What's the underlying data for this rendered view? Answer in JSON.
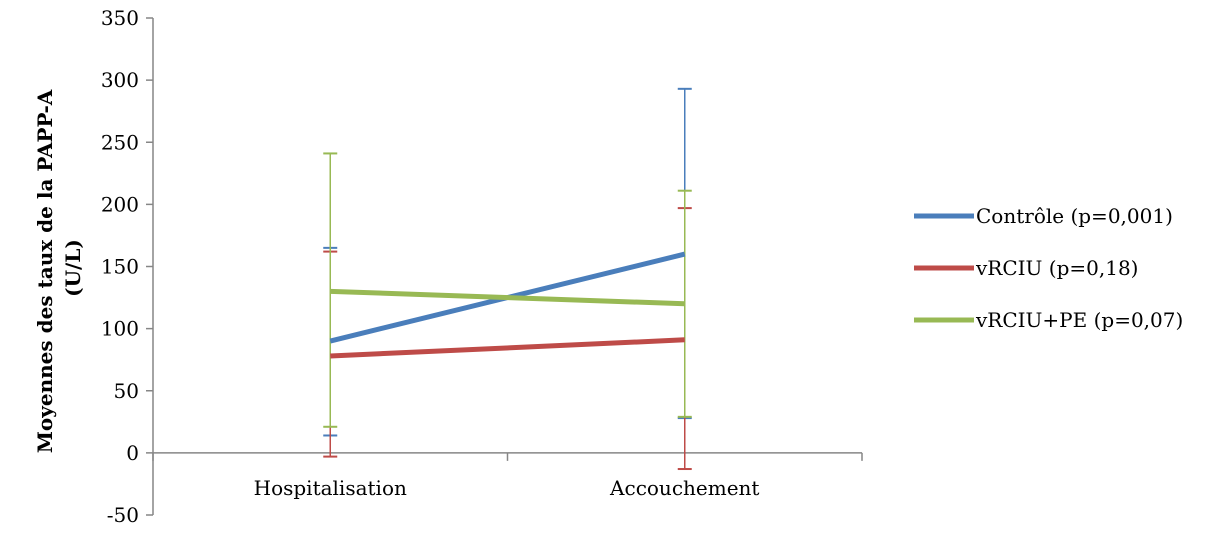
{
  "chart_data": {
    "type": "line",
    "title": "",
    "xlabel": "",
    "ylabel_line1": "Moyennes des  taux de la PAPP-A",
    "ylabel_line2": "(U/L)",
    "ylim": [
      -50,
      350
    ],
    "yticks": [
      -50,
      0,
      50,
      100,
      150,
      200,
      250,
      300,
      350
    ],
    "categories": [
      "Hospitalisation",
      "Accouchement"
    ],
    "grid": false,
    "legend_position": "right",
    "series": [
      {
        "name": "Contrôle (p=0,001)",
        "color": "#4a7ebb",
        "values": [
          90,
          160
        ],
        "err_low": [
          14,
          28
        ],
        "err_high": [
          165,
          293
        ]
      },
      {
        "name": "vRCIU (p=0,18)",
        "color": "#be4b48",
        "values": [
          78,
          91
        ],
        "err_low": [
          -3,
          -13
        ],
        "err_high": [
          162,
          197
        ]
      },
      {
        "name": "vRCIU+PE (p=0,07)",
        "color": "#98b954",
        "values": [
          130,
          120
        ],
        "err_low": [
          21,
          29
        ],
        "err_high": [
          241,
          211
        ]
      }
    ]
  }
}
